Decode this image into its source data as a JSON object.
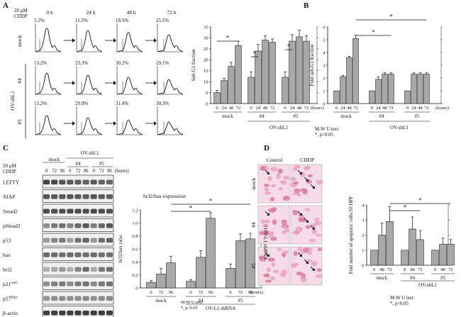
{
  "panel_a": {
    "letter": "A",
    "treatment": [
      "20 μM",
      "CDDP"
    ],
    "timepoints": [
      "0 h",
      "24 h",
      "48 h",
      "72 h"
    ],
    "row_labels": [
      "mock",
      "#4",
      "#5"
    ],
    "group_label": "OV-shL1",
    "percentages": [
      [
        "5.3%",
        "11.2%",
        "18.5%",
        "25.5%"
      ],
      [
        "13.2%",
        "23.3%",
        "30.2%",
        "29.1%"
      ],
      [
        "13.2%",
        "29.9%",
        "31.4%",
        "30.3%"
      ]
    ]
  },
  "panel_b": {
    "letter": "B",
    "group_label": "OV-shL1",
    "units": "(hours)",
    "stats": [
      "M-W U test:",
      "*, p<0.05"
    ],
    "star": "*"
  },
  "panel_c": {
    "letter": "C",
    "treatment": [
      "20 μM",
      "CDDP"
    ],
    "group_label": "OV-shL1",
    "lane_groups": [
      "mock",
      "#4",
      "#5"
    ],
    "lane_times": [
      "0",
      "72",
      "96",
      "0",
      "72",
      "96",
      "0",
      "72",
      "96"
    ],
    "units": "(hours)",
    "blot_labels": [
      "LEFTY",
      "XIAP",
      "Smad2",
      "pSmad2",
      "p53",
      "bax",
      "bcl2",
      "p21waf1",
      "p27Kip1",
      "β-actin"
    ],
    "blot_intensity": [
      [
        0.8,
        0.78,
        0.72,
        0.7,
        0.68,
        0.66,
        0.7,
        0.66,
        0.64
      ],
      [
        0.72,
        0.7,
        0.7,
        0.72,
        0.7,
        0.68,
        0.72,
        0.7,
        0.68
      ],
      [
        0.75,
        0.74,
        0.74,
        0.76,
        0.75,
        0.74,
        0.76,
        0.75,
        0.74
      ],
      [
        0.45,
        0.55,
        0.6,
        0.5,
        0.62,
        0.7,
        0.52,
        0.64,
        0.72
      ],
      [
        0.4,
        0.5,
        0.55,
        0.38,
        0.58,
        0.65,
        0.4,
        0.6,
        0.66
      ],
      [
        0.62,
        0.62,
        0.6,
        0.62,
        0.6,
        0.6,
        0.62,
        0.6,
        0.6
      ],
      [
        0.3,
        0.35,
        0.4,
        0.3,
        0.5,
        0.62,
        0.32,
        0.55,
        0.6
      ],
      [
        0.45,
        0.52,
        0.55,
        0.46,
        0.54,
        0.58,
        0.46,
        0.56,
        0.58
      ],
      [
        0.42,
        0.45,
        0.46,
        0.44,
        0.46,
        0.48,
        0.44,
        0.46,
        0.48
      ],
      [
        0.82,
        0.82,
        0.82,
        0.82,
        0.82,
        0.82,
        0.82,
        0.82,
        0.82
      ]
    ]
  },
  "panel_d": {
    "letter": "D",
    "column_labels": [
      "Control",
      "CDDP"
    ],
    "row_labels": [
      "mock",
      "#4",
      "#5"
    ],
    "side_label": "OV-L1 shRNA",
    "group_label": "OV-shL1",
    "stats": [
      "M-W U test:",
      "*, p<0.05"
    ]
  },
  "chart_data": [
    {
      "id": "sub-g1",
      "type": "bar",
      "title": "",
      "ylabel": "Sub-G1 fraction",
      "xlabel": "(hours)",
      "ylim": [
        0,
        35
      ],
      "yticks": [
        "0",
        "5",
        "10",
        "15",
        "20",
        "25",
        "30",
        "35"
      ],
      "groups": [
        "mock",
        "#4",
        "#5"
      ],
      "categories": [
        "0",
        "24",
        "48",
        "72"
      ],
      "tick_labels": [
        "0",
        "24",
        "48",
        "72",
        "0",
        "24",
        "48",
        "72",
        "0",
        "24",
        "48",
        "72"
      ],
      "series": [
        {
          "name": "mock",
          "values": [
            5,
            10.5,
            17,
            26.5
          ],
          "errors": [
            1,
            1,
            1.8,
            2
          ]
        },
        {
          "name": "#4",
          "values": [
            12,
            24,
            29,
            28
          ],
          "errors": [
            2.5,
            3,
            2,
            1.5
          ]
        },
        {
          "name": "#5",
          "values": [
            12,
            28.5,
            30.5,
            28.5
          ],
          "errors": [
            2.5,
            3,
            3,
            2.5
          ]
        }
      ],
      "significance": [
        [
          "#4",
          "0",
          "24"
        ],
        [
          "#5",
          "0",
          "24"
        ],
        [
          "mock",
          "0",
          "72"
        ]
      ]
    },
    {
      "id": "fold-sub-g1",
      "type": "bar",
      "title": "",
      "ylabel": "Fold sub-G1 fraction",
      "xlabel": "(hours)",
      "ylim": [
        0,
        6
      ],
      "yticks": [
        "0",
        "1",
        "2",
        "3",
        "4",
        "5",
        "6"
      ],
      "groups": [
        "mock",
        "#4",
        "#5"
      ],
      "categories": [
        "0",
        "24",
        "48",
        "72"
      ],
      "tick_labels": [
        "0",
        "24",
        "48",
        "72",
        "0",
        "24",
        "48",
        "72",
        "0",
        "24",
        "48",
        "72"
      ],
      "series": [
        {
          "name": "mock",
          "values": [
            1,
            2.1,
            3.6,
            5.1
          ],
          "errors": [
            0,
            0.1,
            0.1,
            0.25
          ]
        },
        {
          "name": "#4",
          "values": [
            1,
            1.9,
            2.3,
            2.3
          ],
          "errors": [
            0,
            0.2,
            0.1,
            0.1
          ]
        },
        {
          "name": "#5",
          "values": [
            1,
            2.3,
            2.3,
            2.3
          ],
          "errors": [
            0,
            0.1,
            0.1,
            0.1
          ]
        }
      ],
      "significance": [
        [
          "mock",
          "72",
          "#4"
        ],
        [
          "mock",
          "72",
          "#5"
        ]
      ]
    },
    {
      "id": "bcl2-bax",
      "type": "bar",
      "title": "bcl2/bax expression",
      "ylabel": "bcl2/bax ratio",
      "xlabel": "(hours)",
      "ylim": [
        0,
        1.4
      ],
      "yticks": [
        "0",
        "0.2",
        "0.4",
        "0.6",
        "0.8",
        "1.0",
        "1.2"
      ],
      "groups": [
        "mock",
        "#4",
        "#5"
      ],
      "group_label": "OV-L1 shRNA",
      "categories": [
        "0",
        "72",
        "96"
      ],
      "tick_labels": [
        "0",
        "72",
        "96",
        "0",
        "72",
        "96",
        "0",
        "72",
        "96"
      ],
      "series": [
        {
          "name": "mock",
          "values": [
            0.1,
            0.25,
            0.45
          ],
          "errors": [
            0.03,
            0.1,
            0.12
          ]
        },
        {
          "name": "#4",
          "values": [
            0.12,
            0.55,
            1.25
          ],
          "errors": [
            0.03,
            0.12,
            0.1
          ]
        },
        {
          "name": "#5",
          "values": [
            0.35,
            0.85,
            0.88
          ],
          "errors": [
            0.08,
            0.12,
            0.1
          ]
        }
      ],
      "significance": [
        [
          "mock",
          "96",
          "#4"
        ],
        [
          "mock",
          "96",
          "#5"
        ]
      ]
    },
    {
      "id": "apoptotic",
      "type": "bar",
      "title": "",
      "ylabel": "Fold number of apoptotic cells/10 HPF",
      "xlabel": "",
      "ylim": [
        0,
        4
      ],
      "yticks": [
        "0",
        "1",
        "2",
        "3",
        "4"
      ],
      "groups": [
        "mock",
        "#4",
        "#5"
      ],
      "categories": [
        "0",
        "48",
        "72"
      ],
      "tick_labels": [
        "0",
        "48",
        "72",
        "0",
        "48",
        "72",
        "0",
        "48",
        "72"
      ],
      "series": [
        {
          "name": "mock",
          "values": [
            1,
            2.0,
            2.9
          ],
          "errors": [
            0,
            0.8,
            1.0
          ]
        },
        {
          "name": "#4",
          "values": [
            1,
            2.4,
            1.7
          ],
          "errors": [
            0,
            0.8,
            0.6
          ]
        },
        {
          "name": "#5",
          "values": [
            1,
            1.4,
            1.4
          ],
          "errors": [
            0,
            0.4,
            0.3
          ]
        }
      ],
      "significance": [
        [
          "mock",
          "72",
          "#4"
        ],
        [
          "mock",
          "72",
          "#5"
        ]
      ]
    }
  ]
}
